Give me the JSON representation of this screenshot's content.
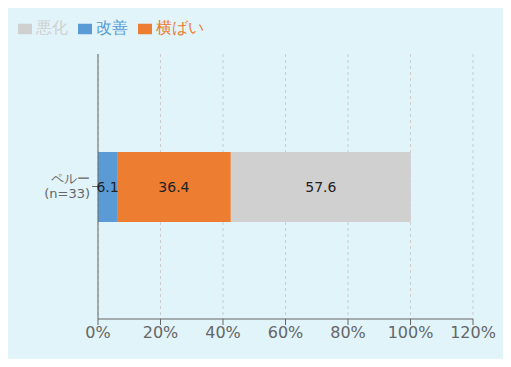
{
  "chart_data": {
    "type": "bar",
    "orientation": "horizontal",
    "stacked": true,
    "categories": [
      "ペルー\n(n=33)"
    ],
    "series": [
      {
        "name": "改善",
        "color": "#5B9BD5",
        "values": [
          6.1
        ]
      },
      {
        "name": "横ばい",
        "color": "#ED7D31",
        "values": [
          36.4
        ]
      },
      {
        "name": "悪化",
        "color": "#D0D0D0",
        "values": [
          57.6
        ]
      }
    ],
    "xlim": [
      0,
      120
    ],
    "xticks": [
      {
        "value": 0,
        "label": "0%"
      },
      {
        "value": 20,
        "label": "20%"
      },
      {
        "value": 40,
        "label": "40%"
      },
      {
        "value": 60,
        "label": "60%"
      },
      {
        "value": 80,
        "label": "80%"
      },
      {
        "value": 100,
        "label": "100%"
      },
      {
        "value": 120,
        "label": "120%"
      }
    ],
    "grid": true,
    "legend": "upper left",
    "data_labels": true
  }
}
